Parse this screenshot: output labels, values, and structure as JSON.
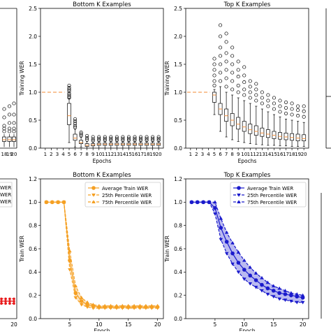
{
  "chart_data": [
    {
      "panel_id": "left-top-partial",
      "type": "box",
      "title": "",
      "xlabel": "",
      "ylabel": "",
      "x_tick_labels": [
        "18",
        "19",
        "20"
      ],
      "ylim": [
        0,
        2.5
      ],
      "series": [
        {
          "x": "18",
          "median": 0.15,
          "q1": 0.12,
          "q3": 0.2,
          "whisker_low": 0.02,
          "whisker_high": 0.25,
          "fliers": [
            0.3,
            0.35,
            0.4,
            0.55,
            0.7
          ]
        },
        {
          "x": "19",
          "median": 0.15,
          "q1": 0.12,
          "q3": 0.2,
          "whisker_low": 0.02,
          "whisker_high": 0.25,
          "fliers": [
            0.3,
            0.35,
            0.45,
            0.6,
            0.75
          ]
        },
        {
          "x": "20",
          "median": 0.15,
          "q1": 0.12,
          "q3": 0.2,
          "whisker_low": 0.02,
          "whisker_high": 0.25,
          "fliers": [
            0.3,
            0.35,
            0.45,
            0.6,
            0.8
          ]
        }
      ]
    },
    {
      "panel_id": "bottom-k-box",
      "type": "box",
      "title": "Bottom K Examples",
      "xlabel": "Epochs",
      "ylabel": "Training WER",
      "x_tick_labels": [
        "1",
        "2",
        "3",
        "4",
        "5",
        "6",
        "7",
        "8",
        "9",
        "10",
        "11",
        "12",
        "13",
        "14",
        "15",
        "16",
        "17",
        "18",
        "19",
        "20"
      ],
      "ylim": [
        0,
        2.5
      ],
      "yticks": [
        "0.0",
        "0.5",
        "1.0",
        "1.5",
        "2.0",
        "2.5"
      ],
      "flat_line": {
        "value": 1.0,
        "epochs": [
          1,
          4
        ],
        "color": "#f5a05a"
      },
      "boxes": [
        {
          "epoch": 5,
          "median": 0.58,
          "q1": 0.42,
          "q3": 0.8,
          "whisker_low": 0.1,
          "whisker_high": 0.88,
          "fliers": [
            0.9,
            0.92,
            0.95,
            0.98,
            1.02,
            1.05,
            1.08,
            1.12
          ]
        },
        {
          "epoch": 6,
          "median": 0.18,
          "q1": 0.14,
          "q3": 0.25,
          "whisker_low": 0.02,
          "whisker_high": 0.34,
          "fliers": [
            0.37,
            0.4,
            0.44,
            0.48,
            0.52
          ]
        },
        {
          "epoch": 7,
          "median": 0.1,
          "q1": 0.08,
          "q3": 0.14,
          "whisker_low": 0.02,
          "whisker_high": 0.2,
          "fliers": [
            0.22,
            0.25,
            0.28
          ]
        },
        {
          "epoch": 8,
          "median": 0.05,
          "q1": 0.03,
          "q3": 0.08,
          "whisker_low": 0.0,
          "whisker_high": 0.12,
          "fliers": [
            0.15,
            0.18,
            0.22
          ]
        },
        {
          "epoch": 9,
          "median": 0.06,
          "q1": 0.04,
          "q3": 0.08,
          "whisker_low": 0.0,
          "whisker_high": 0.11,
          "fliers": [
            0.13,
            0.16,
            0.2
          ]
        },
        {
          "epoch": 10,
          "median": 0.07,
          "q1": 0.05,
          "q3": 0.09,
          "whisker_low": 0.0,
          "whisker_high": 0.12,
          "fliers": [
            0.14,
            0.17,
            0.2
          ]
        },
        {
          "epoch": 11,
          "median": 0.07,
          "q1": 0.05,
          "q3": 0.09,
          "whisker_low": 0.0,
          "whisker_high": 0.12,
          "fliers": [
            0.14,
            0.17,
            0.2
          ]
        },
        {
          "epoch": 12,
          "median": 0.07,
          "q1": 0.05,
          "q3": 0.09,
          "whisker_low": 0.0,
          "whisker_high": 0.12,
          "fliers": [
            0.14,
            0.17,
            0.2
          ]
        },
        {
          "epoch": 13,
          "median": 0.07,
          "q1": 0.05,
          "q3": 0.09,
          "whisker_low": 0.0,
          "whisker_high": 0.12,
          "fliers": [
            0.14,
            0.17,
            0.2
          ]
        },
        {
          "epoch": 14,
          "median": 0.07,
          "q1": 0.05,
          "q3": 0.09,
          "whisker_low": 0.0,
          "whisker_high": 0.12,
          "fliers": [
            0.14,
            0.17,
            0.2
          ]
        },
        {
          "epoch": 15,
          "median": 0.07,
          "q1": 0.05,
          "q3": 0.09,
          "whisker_low": 0.0,
          "whisker_high": 0.12,
          "fliers": [
            0.14,
            0.17,
            0.2
          ]
        },
        {
          "epoch": 16,
          "median": 0.07,
          "q1": 0.05,
          "q3": 0.09,
          "whisker_low": 0.0,
          "whisker_high": 0.12,
          "fliers": [
            0.14,
            0.17,
            0.2
          ]
        },
        {
          "epoch": 17,
          "median": 0.07,
          "q1": 0.05,
          "q3": 0.09,
          "whisker_low": 0.0,
          "whisker_high": 0.12,
          "fliers": [
            0.14,
            0.17,
            0.2
          ]
        },
        {
          "epoch": 18,
          "median": 0.07,
          "q1": 0.05,
          "q3": 0.09,
          "whisker_low": 0.0,
          "whisker_high": 0.12,
          "fliers": [
            0.14,
            0.17,
            0.2
          ]
        },
        {
          "epoch": 19,
          "median": 0.07,
          "q1": 0.05,
          "q3": 0.09,
          "whisker_low": 0.0,
          "whisker_high": 0.12,
          "fliers": [
            0.14,
            0.17,
            0.2
          ]
        },
        {
          "epoch": 20,
          "median": 0.07,
          "q1": 0.05,
          "q3": 0.09,
          "whisker_low": 0.0,
          "whisker_high": 0.12,
          "fliers": [
            0.14,
            0.17,
            0.2
          ]
        }
      ]
    },
    {
      "panel_id": "top-k-box",
      "type": "box",
      "title": "Top K Examples",
      "xlabel": "Epochs",
      "ylabel": "Training WER",
      "x_tick_labels": [
        "1",
        "2",
        "3",
        "4",
        "5",
        "6",
        "7",
        "8",
        "9",
        "10",
        "11",
        "12",
        "13",
        "14",
        "15",
        "16",
        "17",
        "18",
        "19",
        "20"
      ],
      "ylim": [
        0,
        2.5
      ],
      "yticks": [
        "0.0",
        "0.5",
        "1.0",
        "1.5",
        "2.0",
        "2.5"
      ],
      "flat_line": {
        "value": 1.0,
        "epochs": [
          1,
          4
        ],
        "color": "#f5a05a"
      },
      "boxes": [
        {
          "epoch": 5,
          "median": 0.95,
          "q1": 0.82,
          "q3": 1.0,
          "whisker_low": 0.6,
          "whisker_high": 1.05,
          "fliers": [
            1.12,
            1.2,
            1.3,
            1.4,
            1.5,
            1.6
          ]
        },
        {
          "epoch": 6,
          "median": 0.7,
          "q1": 0.6,
          "q3": 0.8,
          "whisker_low": 0.3,
          "whisker_high": 1.1,
          "fliers": [
            1.2,
            1.35,
            1.5,
            1.65,
            1.8,
            2.0,
            2.2
          ]
        },
        {
          "epoch": 7,
          "median": 0.58,
          "q1": 0.48,
          "q3": 0.7,
          "whisker_low": 0.2,
          "whisker_high": 1.0,
          "fliers": [
            1.1,
            1.25,
            1.4,
            1.55,
            1.7,
            1.9,
            2.05
          ]
        },
        {
          "epoch": 8,
          "median": 0.5,
          "q1": 0.4,
          "q3": 0.62,
          "whisker_low": 0.15,
          "whisker_high": 0.95,
          "fliers": [
            1.05,
            1.2,
            1.35,
            1.5,
            1.65,
            1.8
          ]
        },
        {
          "epoch": 9,
          "median": 0.43,
          "q1": 0.34,
          "q3": 0.55,
          "whisker_low": 0.12,
          "whisker_high": 0.9,
          "fliers": [
            1.0,
            1.12,
            1.28,
            1.4,
            1.55
          ]
        },
        {
          "epoch": 10,
          "median": 0.38,
          "q1": 0.3,
          "q3": 0.48,
          "whisker_low": 0.1,
          "whisker_high": 0.85,
          "fliers": [
            0.95,
            1.05,
            1.18,
            1.3,
            1.45
          ]
        },
        {
          "epoch": 11,
          "median": 0.33,
          "q1": 0.26,
          "q3": 0.43,
          "whisker_low": 0.08,
          "whisker_high": 0.8,
          "fliers": [
            0.9,
            1.0,
            1.1,
            1.2
          ]
        },
        {
          "epoch": 12,
          "median": 0.3,
          "q1": 0.23,
          "q3": 0.4,
          "whisker_low": 0.07,
          "whisker_high": 0.75,
          "fliers": [
            0.85,
            0.95,
            1.05,
            1.15
          ]
        },
        {
          "epoch": 13,
          "median": 0.27,
          "q1": 0.21,
          "q3": 0.36,
          "whisker_low": 0.06,
          "whisker_high": 0.7,
          "fliers": [
            0.8,
            0.9,
            1.0
          ]
        },
        {
          "epoch": 14,
          "median": 0.25,
          "q1": 0.19,
          "q3": 0.33,
          "whisker_low": 0.05,
          "whisker_high": 0.65,
          "fliers": [
            0.75,
            0.85,
            0.95
          ]
        },
        {
          "epoch": 15,
          "median": 0.23,
          "q1": 0.17,
          "q3": 0.3,
          "whisker_low": 0.05,
          "whisker_high": 0.6,
          "fliers": [
            0.7,
            0.8,
            0.9
          ]
        },
        {
          "epoch": 16,
          "median": 0.21,
          "q1": 0.16,
          "q3": 0.28,
          "whisker_low": 0.04,
          "whisker_high": 0.56,
          "fliers": [
            0.65,
            0.75,
            0.85
          ]
        },
        {
          "epoch": 17,
          "median": 0.2,
          "q1": 0.15,
          "q3": 0.27,
          "whisker_low": 0.04,
          "whisker_high": 0.52,
          "fliers": [
            0.62,
            0.72,
            0.82
          ]
        },
        {
          "epoch": 18,
          "median": 0.19,
          "q1": 0.14,
          "q3": 0.26,
          "whisker_low": 0.03,
          "whisker_high": 0.5,
          "fliers": [
            0.6,
            0.7,
            0.8
          ]
        },
        {
          "epoch": 19,
          "median": 0.18,
          "q1": 0.13,
          "q3": 0.25,
          "whisker_low": 0.03,
          "whisker_high": 0.48,
          "fliers": [
            0.58,
            0.68,
            0.75
          ]
        },
        {
          "epoch": 20,
          "median": 0.17,
          "q1": 0.13,
          "q3": 0.24,
          "whisker_low": 0.03,
          "whisker_high": 0.46,
          "fliers": [
            0.56,
            0.66,
            0.75
          ]
        }
      ]
    },
    {
      "panel_id": "left-bottom-partial",
      "type": "line",
      "title": "",
      "xlabel": "",
      "ylabel": "",
      "x_tick_labels": [
        "20"
      ],
      "legend_fragments": [
        "WER",
        "WER",
        "WER"
      ],
      "series": [
        {
          "color": "#e8191a",
          "x": [
            17,
            18,
            19,
            20
          ],
          "values": [
            0.15,
            0.15,
            0.15,
            0.15
          ]
        }
      ]
    },
    {
      "panel_id": "bottom-k-line",
      "type": "line",
      "title": "Bottom K Examples",
      "xlabel": "Epoch",
      "ylabel": "Train WER",
      "xlim": [
        0,
        21
      ],
      "ylim": [
        0,
        1.2
      ],
      "xticks": [
        "5",
        "10",
        "15",
        "20"
      ],
      "yticks": [
        "0.0",
        "0.2",
        "0.4",
        "0.6",
        "0.8",
        "1.0",
        "1.2"
      ],
      "legend_position": "upper right",
      "x": [
        1,
        2,
        3,
        4,
        5,
        6,
        7,
        8,
        9,
        10,
        11,
        12,
        13,
        14,
        15,
        16,
        17,
        18,
        19,
        20
      ],
      "series": [
        {
          "name": "Average Train WER",
          "color": "#f5a023",
          "marker": "circle",
          "linestyle": "solid",
          "values": [
            1.0,
            1.0,
            1.0,
            1.0,
            0.5,
            0.22,
            0.15,
            0.12,
            0.11,
            0.1,
            0.1,
            0.1,
            0.1,
            0.1,
            0.1,
            0.1,
            0.1,
            0.1,
            0.1,
            0.1
          ]
        },
        {
          "name": "25th Percentile WER",
          "color": "#f5a023",
          "marker": "triangle-down",
          "linestyle": "dashed",
          "values": [
            1.0,
            1.0,
            1.0,
            1.0,
            0.42,
            0.18,
            0.12,
            0.1,
            0.09,
            0.09,
            0.09,
            0.09,
            0.09,
            0.09,
            0.09,
            0.09,
            0.09,
            0.09,
            0.09,
            0.09
          ]
        },
        {
          "name": "75th Percentile WER",
          "color": "#f5a023",
          "marker": "triangle-up",
          "linestyle": "dashed",
          "values": [
            1.0,
            1.0,
            1.0,
            1.0,
            0.58,
            0.28,
            0.18,
            0.14,
            0.12,
            0.11,
            0.11,
            0.11,
            0.11,
            0.11,
            0.11,
            0.11,
            0.11,
            0.11,
            0.11,
            0.11
          ]
        }
      ]
    },
    {
      "panel_id": "top-k-line",
      "type": "line",
      "title": "Top K Examples",
      "xlabel": "Epoch",
      "ylabel": "Train WER",
      "xlim": [
        0,
        21
      ],
      "ylim": [
        0,
        1.2
      ],
      "xticks": [
        "5",
        "10",
        "15",
        "20"
      ],
      "yticks": [
        "0.0",
        "0.2",
        "0.4",
        "0.6",
        "0.8",
        "1.0",
        "1.2"
      ],
      "legend_position": "upper right",
      "x": [
        1,
        2,
        3,
        4,
        5,
        6,
        7,
        8,
        9,
        10,
        11,
        12,
        13,
        14,
        15,
        16,
        17,
        18,
        19,
        20
      ],
      "series": [
        {
          "name": "Average Train WER",
          "color": "#1a1acc",
          "marker": "circle",
          "linestyle": "solid",
          "values": [
            1.0,
            1.0,
            1.0,
            1.0,
            0.95,
            0.78,
            0.66,
            0.56,
            0.48,
            0.42,
            0.37,
            0.33,
            0.29,
            0.26,
            0.24,
            0.22,
            0.21,
            0.2,
            0.19,
            0.18
          ]
        },
        {
          "name": "25th Percentile WER",
          "color": "#1a1acc",
          "marker": "triangle-down",
          "linestyle": "dashed",
          "values": [
            1.0,
            1.0,
            1.0,
            1.0,
            0.9,
            0.68,
            0.56,
            0.47,
            0.4,
            0.34,
            0.3,
            0.27,
            0.24,
            0.21,
            0.19,
            0.17,
            0.16,
            0.15,
            0.14,
            0.14
          ]
        },
        {
          "name": "75th Percentile WER",
          "color": "#1a1acc",
          "marker": "triangle-up",
          "linestyle": "dashed",
          "values": [
            1.0,
            1.0,
            1.0,
            1.0,
            1.0,
            0.86,
            0.74,
            0.65,
            0.57,
            0.5,
            0.44,
            0.39,
            0.35,
            0.31,
            0.28,
            0.26,
            0.24,
            0.22,
            0.21,
            0.2
          ]
        }
      ]
    },
    {
      "panel_id": "right-edge-partial",
      "type": "line",
      "x_tick_labels": [],
      "series": []
    }
  ]
}
